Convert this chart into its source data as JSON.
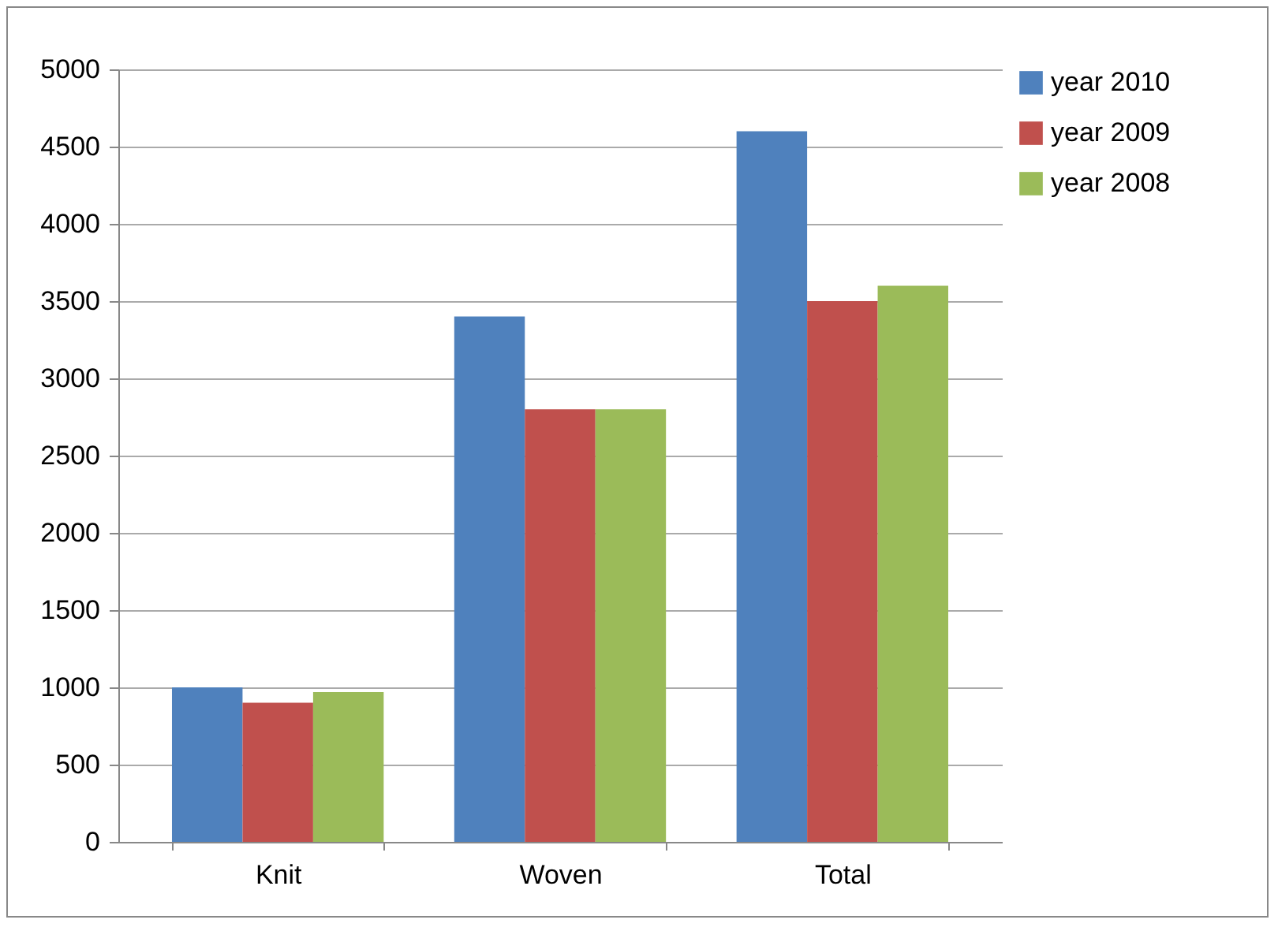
{
  "chart_data": {
    "type": "bar",
    "categories": [
      "Knit",
      "Woven",
      "Total"
    ],
    "series": [
      {
        "name": "year 2010",
        "color": "#4f81bd",
        "values": [
          1000,
          3400,
          4600
        ]
      },
      {
        "name": "year 2009",
        "color": "#c0504d",
        "values": [
          900,
          2800,
          3500
        ]
      },
      {
        "name": "year 2008",
        "color": "#9bbb59",
        "values": [
          970,
          2800,
          3600
        ]
      }
    ],
    "ylim": [
      0,
      5000
    ],
    "yticks": [
      0,
      500,
      1000,
      1500,
      2000,
      2500,
      3000,
      3500,
      4000,
      4500,
      5000
    ],
    "grid": "y",
    "legend": "right"
  }
}
